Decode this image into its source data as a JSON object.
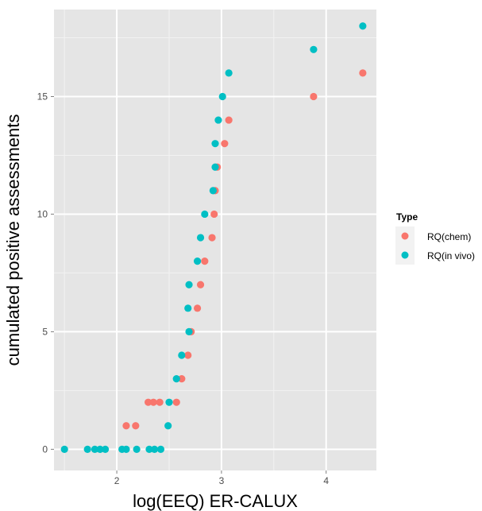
{
  "chart_data": {
    "type": "scatter",
    "xlabel": "log(EEQ) ER-CALUX",
    "ylabel": "cumulated positive assessments",
    "xlim": [
      1.4,
      4.48
    ],
    "ylim": [
      -0.9,
      18.7
    ],
    "x_ticks": [
      2,
      3,
      4
    ],
    "y_ticks": [
      0,
      5,
      10,
      15
    ],
    "x_tick_labels": [
      "2",
      "3",
      "4"
    ],
    "y_tick_labels": [
      "0",
      "5",
      "10",
      "15"
    ],
    "grid": true,
    "legend": {
      "title": "Type",
      "placement": "right"
    },
    "series": [
      {
        "name": "RQ(chem)",
        "color": "#F8766D",
        "points": [
          [
            2.09,
            1
          ],
          [
            2.18,
            1
          ],
          [
            2.3,
            2
          ],
          [
            2.35,
            2
          ],
          [
            2.41,
            2
          ],
          [
            2.57,
            2
          ],
          [
            2.62,
            3
          ],
          [
            2.68,
            4
          ],
          [
            2.71,
            5
          ],
          [
            2.77,
            6
          ],
          [
            2.8,
            7
          ],
          [
            2.84,
            8
          ],
          [
            2.91,
            9
          ],
          [
            2.93,
            10
          ],
          [
            2.94,
            11
          ],
          [
            2.96,
            12
          ],
          [
            3.03,
            13
          ],
          [
            3.07,
            14
          ],
          [
            3.88,
            15
          ],
          [
            4.35,
            16
          ]
        ]
      },
      {
        "name": "RQ(in vivo)",
        "color": "#00BFC4",
        "points": [
          [
            1.5,
            0
          ],
          [
            1.72,
            0
          ],
          [
            1.79,
            0
          ],
          [
            1.84,
            0
          ],
          [
            1.89,
            0
          ],
          [
            2.05,
            0
          ],
          [
            2.09,
            0
          ],
          [
            2.19,
            0
          ],
          [
            2.31,
            0
          ],
          [
            2.36,
            0
          ],
          [
            2.42,
            0
          ],
          [
            2.49,
            1
          ],
          [
            2.5,
            2
          ],
          [
            2.57,
            3
          ],
          [
            2.62,
            4
          ],
          [
            2.69,
            5
          ],
          [
            2.68,
            6
          ],
          [
            2.69,
            7
          ],
          [
            2.77,
            8
          ],
          [
            2.8,
            9
          ],
          [
            2.84,
            10
          ],
          [
            2.92,
            11
          ],
          [
            2.94,
            12
          ],
          [
            2.94,
            13
          ],
          [
            2.97,
            14
          ],
          [
            3.01,
            15
          ],
          [
            3.07,
            16
          ],
          [
            3.88,
            17
          ],
          [
            4.35,
            18
          ]
        ]
      }
    ]
  }
}
